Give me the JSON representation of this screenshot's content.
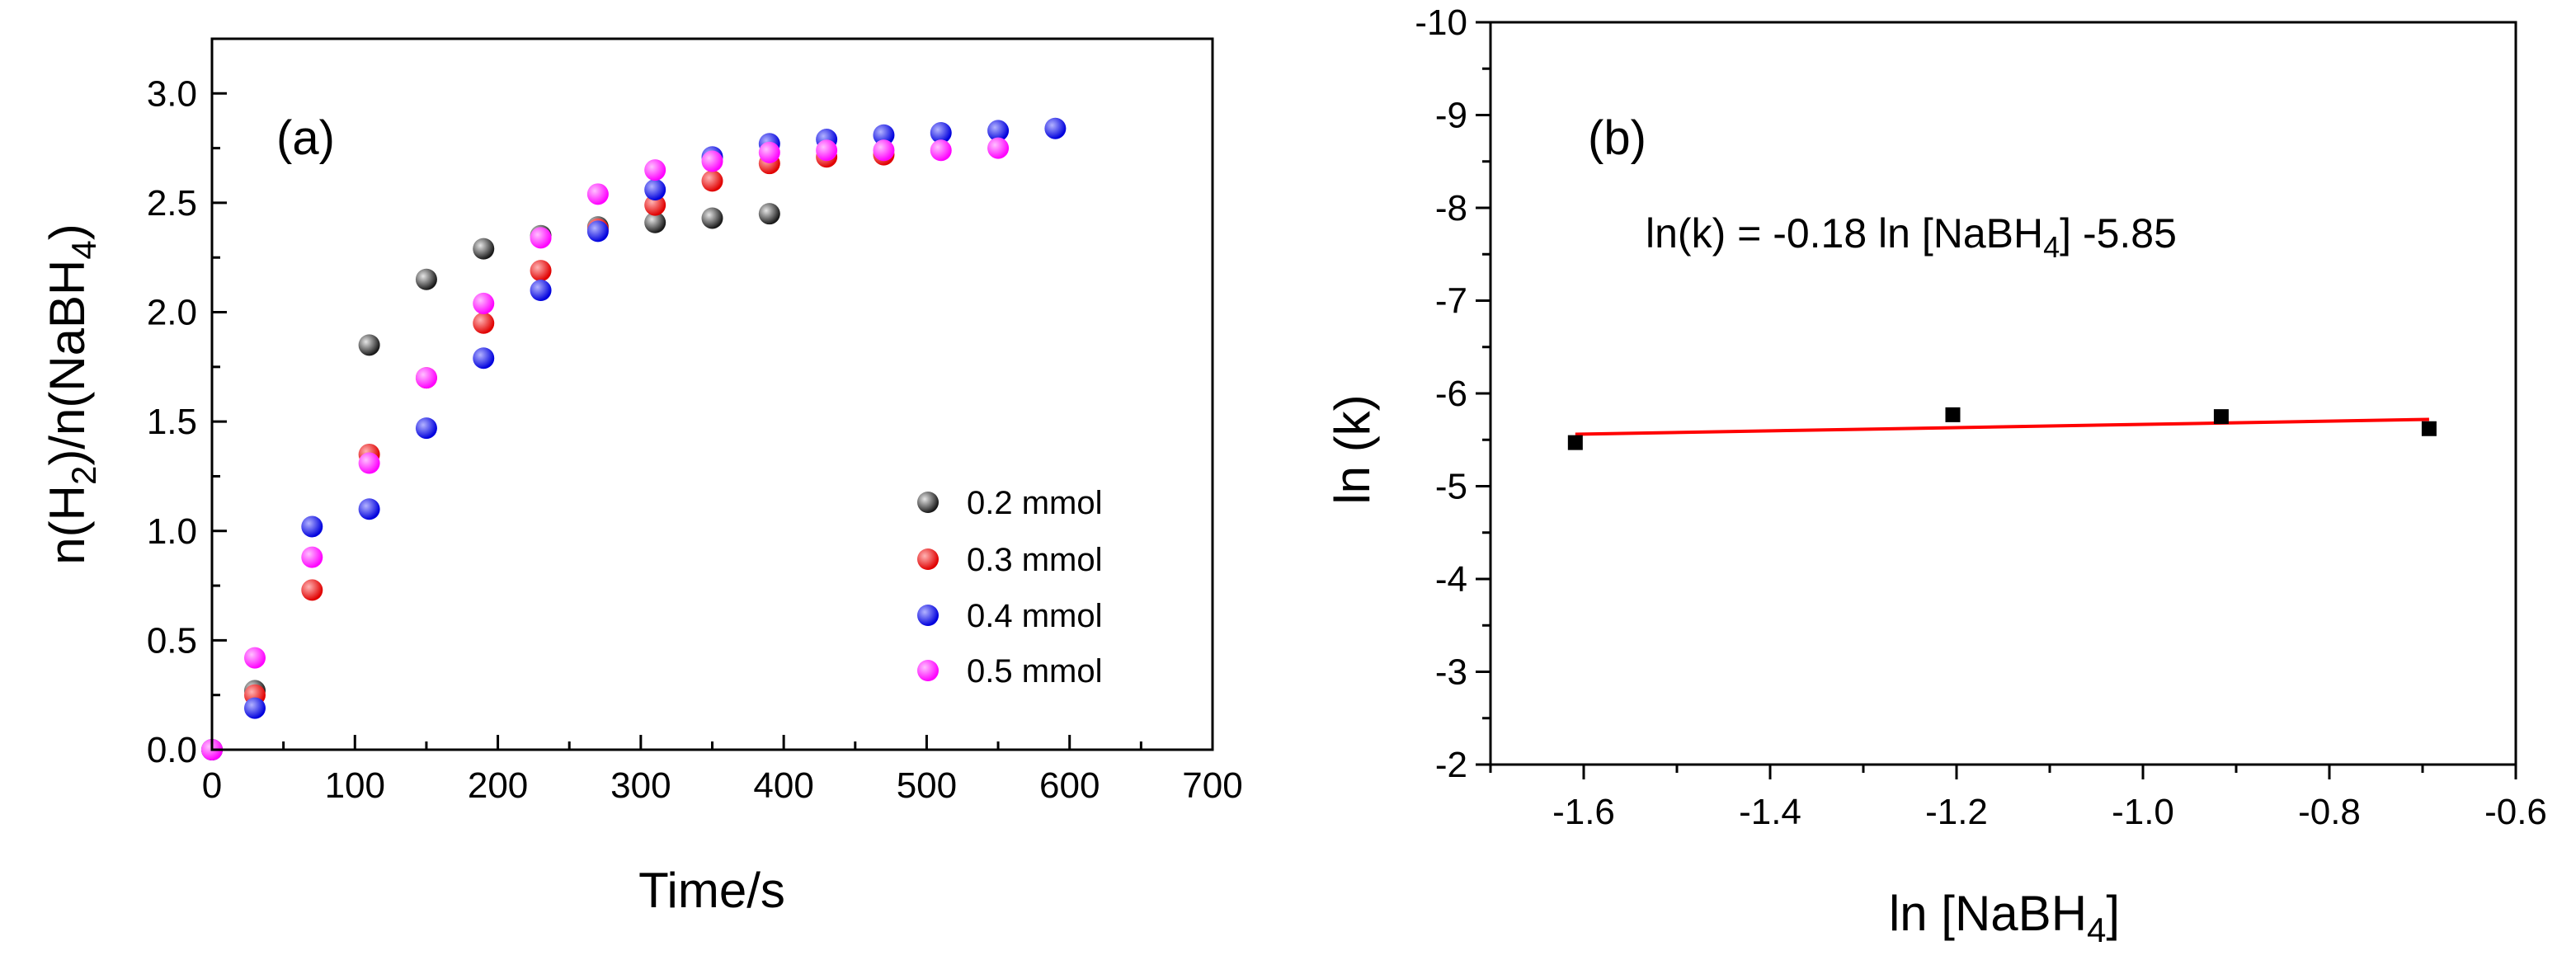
{
  "chart_data": [
    {
      "panel": "(a)",
      "type": "scatter",
      "title": "",
      "xlabel": "Time/s",
      "ylabel": {
        "prefix": "n(H",
        "sub1": "2",
        "middle": ")/n(NaBH",
        "sub2": "4",
        "suffix": ")"
      },
      "xlim": [
        0,
        700
      ],
      "ylim": [
        0,
        3.25
      ],
      "xticks": [
        0,
        100,
        200,
        300,
        400,
        500,
        600,
        700
      ],
      "xtick_labels": [
        "0",
        "100",
        "200",
        "300",
        "400",
        "500",
        "600",
        "700"
      ],
      "yticks": [
        0,
        0.5,
        1.0,
        1.5,
        2.0,
        2.5,
        3.0
      ],
      "ytick_labels": [
        "0.0",
        "0.5",
        "1.0",
        "1.5",
        "2.0",
        "2.5",
        "3.0"
      ],
      "legend_position": "lower-right",
      "series": [
        {
          "name": "0.2 mmol",
          "color": "#1a1a1a",
          "highlight": "#e6e6e6",
          "x": [
            0,
            30,
            110,
            150,
            190,
            230,
            270,
            310,
            350,
            390
          ],
          "y": [
            0,
            0.27,
            1.85,
            2.15,
            2.29,
            2.35,
            2.39,
            2.41,
            2.43,
            2.45
          ]
        },
        {
          "name": "0.3 mmol",
          "color": "#e00000",
          "highlight": "#ffb3b3",
          "x": [
            0,
            30,
            70,
            110,
            150,
            190,
            230,
            270,
            310,
            350,
            390,
            430,
            470
          ],
          "y": [
            0,
            0.25,
            0.73,
            1.35,
            1.7,
            1.95,
            2.19,
            2.38,
            2.49,
            2.6,
            2.68,
            2.71,
            2.72
          ]
        },
        {
          "name": "0.4 mmol",
          "color": "#0000dd",
          "highlight": "#b3b3ff",
          "x": [
            0,
            30,
            70,
            110,
            150,
            190,
            230,
            270,
            310,
            350,
            390,
            430,
            470,
            510,
            550,
            590
          ],
          "y": [
            0,
            0.19,
            1.02,
            1.1,
            1.47,
            1.79,
            2.1,
            2.37,
            2.56,
            2.71,
            2.77,
            2.79,
            2.81,
            2.82,
            2.83,
            2.84
          ]
        },
        {
          "name": "0.5 mmol",
          "color": "#ff00ff",
          "highlight": "#ffc0ff",
          "x": [
            0,
            30,
            70,
            110,
            150,
            190,
            230,
            270,
            310,
            350,
            390,
            430,
            470,
            510,
            550
          ],
          "y": [
            0,
            0.42,
            0.88,
            1.31,
            1.7,
            2.04,
            2.34,
            2.54,
            2.65,
            2.69,
            2.73,
            2.74,
            2.74,
            2.74,
            2.75
          ]
        }
      ]
    },
    {
      "panel": "(b)",
      "type": "scatter",
      "title": "",
      "xlabel": {
        "prefix": "ln [NaBH",
        "sub": "4",
        "suffix": "]"
      },
      "ylabel": "ln (k)",
      "xlim": [
        -1.7,
        -0.6
      ],
      "ylim": [
        -2,
        -10
      ],
      "xticks": [
        -1.6,
        -1.4,
        -1.2,
        -1.0,
        -0.8,
        -0.6
      ],
      "xtick_labels": [
        "-1.6",
        "-1.4",
        "-1.2",
        "-1.0",
        "-0.8",
        "-0.6"
      ],
      "yticks": [
        -2,
        -3,
        -4,
        -5,
        -6,
        -7,
        -8,
        -9,
        -10
      ],
      "ytick_labels": [
        "-2",
        "-3",
        "-4",
        "-5",
        "-6",
        "-7",
        "-8",
        "-9",
        "-10"
      ],
      "annotation": {
        "prefix": "ln(k) = -0.18 ln [NaBH",
        "sub": "4",
        "suffix": "] -5.85"
      },
      "points": {
        "color": "#000000",
        "x": [
          -1.609,
          -1.204,
          -0.916,
          -0.693
        ],
        "y": [
          -5.47,
          -5.77,
          -5.75,
          -5.62
        ]
      },
      "fit_line": {
        "color": "#ff0000",
        "x": [
          -1.609,
          -0.693
        ],
        "y": [
          -5.56,
          -5.72
        ]
      }
    }
  ]
}
